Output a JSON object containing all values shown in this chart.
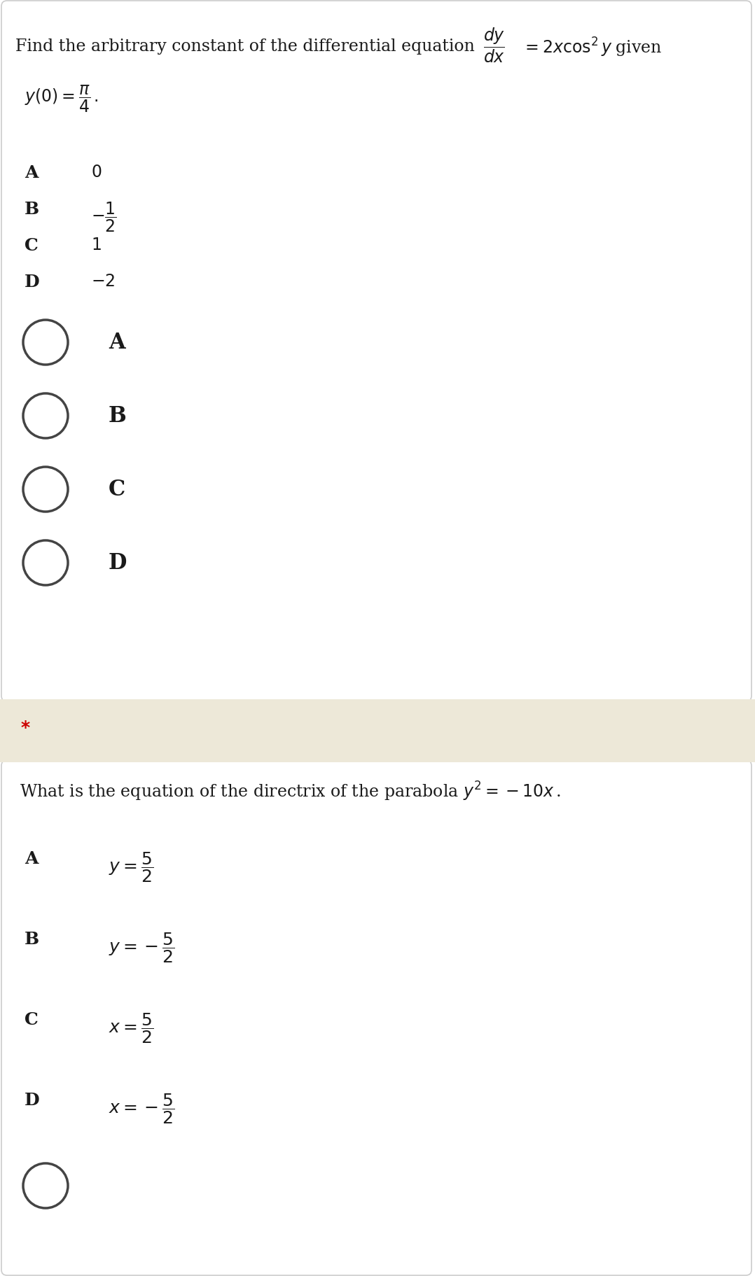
{
  "bg_color_white": "#ffffff",
  "bg_color_separator": "#ede8d8",
  "border_color": "#cccccc",
  "text_color": "#1a1a1a",
  "star_color": "#cc0000",
  "circle_edge_color": "#444444",
  "q1_intro": "Find the arbitrary constant of the differential equation",
  "q1_given": "given",
  "q1_condition": "y(0) = \\dfrac{\\pi}{4}\\,.",
  "q1_opt_labels": [
    "A",
    "B",
    "C",
    "D"
  ],
  "q1_opt_vals": [
    "0",
    "-\\dfrac{1}{2}",
    "1",
    "-2"
  ],
  "q1_radio_labels": [
    "A",
    "B",
    "C",
    "D"
  ],
  "q2_intro": "What is the equation of the directrix of the parabola $y^2 = -10x$.",
  "q2_opt_labels": [
    "A",
    "B",
    "C",
    "D"
  ],
  "q2_opt_vals": [
    "y = \\dfrac{5}{2}",
    "y = -\\dfrac{5}{2}",
    "x = \\dfrac{5}{2}",
    "x = -\\dfrac{5}{2}"
  ],
  "fig_width": 10.78,
  "fig_height": 18.24,
  "dpi": 100
}
